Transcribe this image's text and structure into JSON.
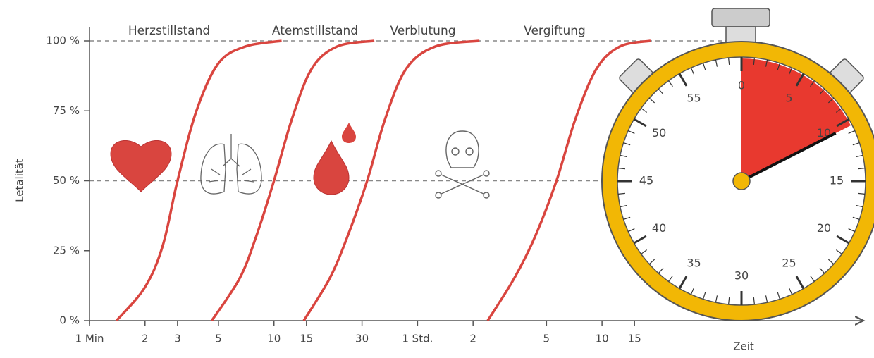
{
  "chart_data": {
    "type": "line",
    "y_label": "Letalität",
    "x_label": "Zeit",
    "log_x": true,
    "xlim": [
      1,
      15000
    ],
    "ylim": [
      0,
      100
    ],
    "xticks": [
      {
        "value": 1,
        "label": "1 Min"
      },
      2,
      3,
      5,
      10,
      15,
      30,
      {
        "value": 60,
        "label": "1 Std."
      },
      {
        "value": 120,
        "label": "2"
      },
      {
        "value": 300,
        "label": "5"
      },
      {
        "value": 600,
        "label": "10"
      },
      {
        "value": 900,
        "label": "15"
      }
    ],
    "yticks": [
      {
        "value": 0,
        "label": "0 %"
      },
      {
        "value": 25,
        "label": "25 %"
      },
      {
        "value": 50,
        "label": "50 %"
      },
      {
        "value": 75,
        "label": "75 %"
      },
      {
        "value": 100,
        "label": "100 %"
      }
    ],
    "dashed_lines": [
      50,
      100
    ],
    "series": [
      {
        "name": "Herzstillstand",
        "color": "#d9453f",
        "x": [
          1.4,
          2,
          2.5,
          3,
          3.8,
          5,
          7,
          11
        ],
        "values": [
          0,
          12,
          27,
          50,
          75,
          92,
          98,
          100
        ]
      },
      {
        "name": "Atemstillstand",
        "color": "#d9453f",
        "x": [
          4.6,
          6.5,
          8,
          10,
          12.5,
          16,
          22,
          35
        ],
        "values": [
          0,
          15,
          30,
          50,
          72,
          90,
          98,
          100
        ]
      },
      {
        "name": "Verblutung",
        "color": "#d9453f",
        "x": [
          14.5,
          20,
          25,
          32,
          40,
          52,
          75,
          130
        ],
        "values": [
          0,
          15,
          30,
          50,
          72,
          90,
          98,
          100
        ]
      },
      {
        "name": "Vergiftung",
        "color": "#d9453f",
        "x": [
          144,
          200,
          260,
          340,
          430,
          560,
          750,
          1100
        ],
        "values": [
          0,
          15,
          30,
          50,
          72,
          90,
          98,
          100
        ]
      }
    ]
  },
  "stopwatch": {
    "labels": [
      "0",
      "5",
      "10",
      "15",
      "20",
      "25",
      "30",
      "35",
      "40",
      "45",
      "50",
      "55"
    ]
  }
}
